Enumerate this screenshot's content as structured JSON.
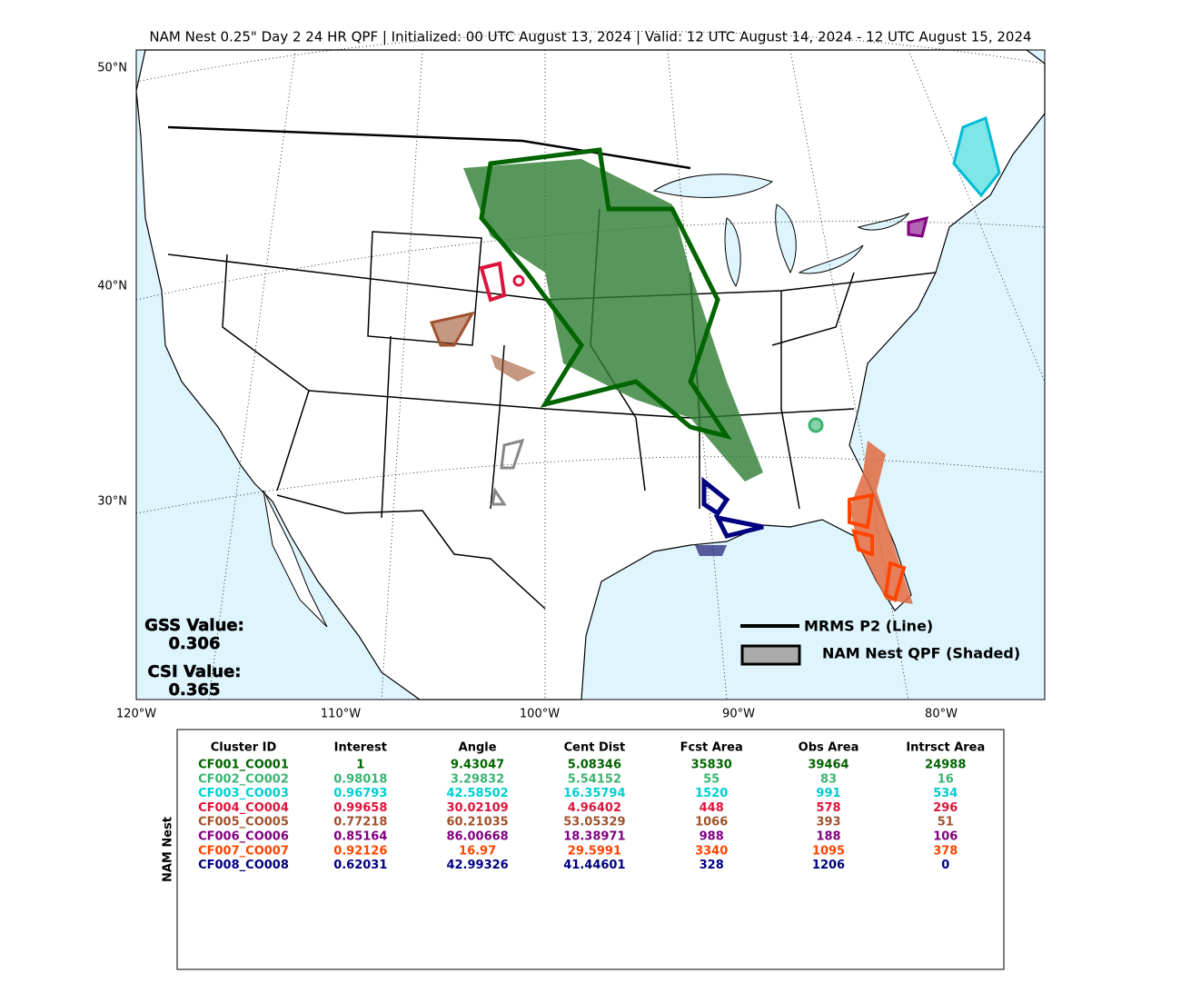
{
  "title": "NAM Nest 0.25\" Day 2 24 HR QPF | Initialized: 00 UTC August 13, 2024 | Valid: 12 UTC August 14, 2024 - 12 UTC August 15, 2024",
  "map": {
    "lon_labels": [
      "120°W",
      "110°W",
      "100°W",
      "90°W",
      "80°W"
    ],
    "lat_labels": [
      "50°N",
      "40°N",
      "30°N"
    ],
    "scores": [
      {
        "label": "GSS Value:",
        "value": "0.306"
      },
      {
        "label": "CSI Value:",
        "value": "0.365"
      }
    ],
    "legend": [
      "MRMS P2 (Line)",
      "NAM Nest QPF (Shaded)"
    ]
  },
  "table": {
    "side_label": "NAM Nest",
    "columns": [
      "Cluster ID",
      "Interest",
      "Angle",
      "Cent Dist",
      "Fcst Area",
      "Obs Area",
      "Intrsct Area"
    ],
    "rows": [
      {
        "color": "#006400",
        "cells": [
          "CF001_CO001",
          "1",
          "9.43047",
          "5.08346",
          "35830",
          "39464",
          "24988"
        ]
      },
      {
        "color": "#3cb371",
        "cells": [
          "CF002_CO002",
          "0.98018",
          "3.29832",
          "5.54152",
          "55",
          "83",
          "16"
        ]
      },
      {
        "color": "#00ced1",
        "cells": [
          "CF003_CO003",
          "0.96793",
          "42.58502",
          "16.35794",
          "1520",
          "991",
          "534"
        ]
      },
      {
        "color": "#dc143c",
        "cells": [
          "CF004_CO004",
          "0.99658",
          "30.02109",
          "4.96402",
          "448",
          "578",
          "296"
        ]
      },
      {
        "color": "#a0522d",
        "cells": [
          "CF005_CO005",
          "0.77218",
          "60.21035",
          "53.05329",
          "1066",
          "393",
          "51"
        ]
      },
      {
        "color": "#800080",
        "cells": [
          "CF006_CO006",
          "0.85164",
          "86.00668",
          "18.38971",
          "988",
          "188",
          "106"
        ]
      },
      {
        "color": "#ff4500",
        "cells": [
          "CF007_CO007",
          "0.92126",
          "16.97",
          "29.5991",
          "3340",
          "1095",
          "378"
        ]
      },
      {
        "color": "#000080",
        "cells": [
          "CF008_CO008",
          "0.62031",
          "42.99326",
          "41.44601",
          "328",
          "1206",
          "0"
        ]
      }
    ]
  }
}
